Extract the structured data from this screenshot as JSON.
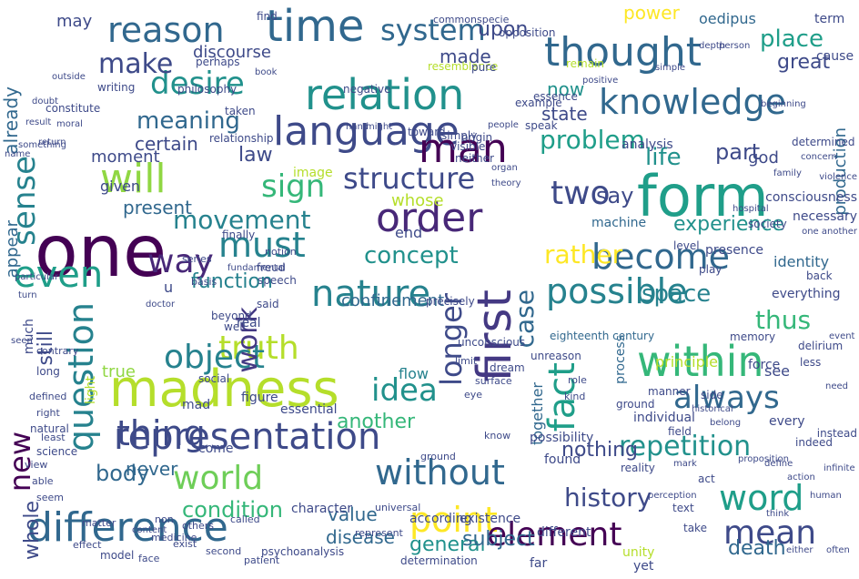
{
  "words": [
    {
      "text": "one",
      "color": "#440154"
    },
    {
      "text": "form",
      "color": "#1f9e89"
    },
    {
      "text": "madness",
      "color": "#b5de2b"
    },
    {
      "text": "language",
      "color": "#3e4a89"
    },
    {
      "text": "difference",
      "color": "#31688e"
    },
    {
      "text": "representation",
      "color": "#3e4a89"
    },
    {
      "text": "thought",
      "color": "#31688e"
    },
    {
      "text": "relation",
      "color": "#21918c"
    },
    {
      "text": "time",
      "color": "#31688e"
    },
    {
      "text": "nature",
      "color": "#26828e"
    },
    {
      "text": "order",
      "color": "#482878"
    },
    {
      "text": "reason",
      "color": "#31688e"
    },
    {
      "text": "knowledge",
      "color": "#31688e"
    },
    {
      "text": "first",
      "color": "#443983"
    },
    {
      "text": "within",
      "color": "#35b779"
    },
    {
      "text": "will",
      "color": "#90d743"
    },
    {
      "text": "question",
      "color": "#26828e"
    },
    {
      "text": "man",
      "color": "#440154"
    },
    {
      "text": "possible",
      "color": "#26828e"
    },
    {
      "text": "world",
      "color": "#6ece58"
    },
    {
      "text": "thing",
      "color": "#3e4a89"
    },
    {
      "text": "without",
      "color": "#31688e"
    },
    {
      "text": "word",
      "color": "#1f9e89"
    },
    {
      "text": "become",
      "color": "#31688e"
    },
    {
      "text": "must",
      "color": "#26828e"
    },
    {
      "text": "fact",
      "color": "#1f9e89"
    },
    {
      "text": "even",
      "color": "#1f9e89"
    },
    {
      "text": "sense",
      "color": "#26828e"
    },
    {
      "text": "desire",
      "color": "#21918c"
    },
    {
      "text": "longer",
      "color": "#3e4a89"
    },
    {
      "text": "point",
      "color": "#fde725"
    },
    {
      "text": "element",
      "color": "#440154"
    },
    {
      "text": "mean",
      "color": "#3e4a89"
    },
    {
      "text": "truth",
      "color": "#b5de2b"
    },
    {
      "text": "object",
      "color": "#26828e"
    },
    {
      "text": "two",
      "color": "#3e4a89"
    },
    {
      "text": "always",
      "color": "#31688e"
    },
    {
      "text": "idea",
      "color": "#21918c"
    },
    {
      "text": "way",
      "color": "#482878"
    },
    {
      "text": "sign",
      "color": "#35b779"
    },
    {
      "text": "new",
      "color": "#440154"
    },
    {
      "text": "structure",
      "color": "#3e4a89"
    },
    {
      "text": "system",
      "color": "#31688e"
    },
    {
      "text": "make",
      "color": "#3e4a89"
    },
    {
      "text": "history",
      "color": "#3e4a89"
    },
    {
      "text": "repetition",
      "color": "#21918c"
    },
    {
      "text": "rather",
      "color": "#fde725"
    },
    {
      "text": "movement",
      "color": "#26828e"
    },
    {
      "text": "problem",
      "color": "#1f9e89"
    },
    {
      "text": "meaning",
      "color": "#31688e"
    },
    {
      "text": "life",
      "color": "#21918c"
    },
    {
      "text": "place",
      "color": "#1f9e89"
    },
    {
      "text": "work",
      "color": "#443983"
    },
    {
      "text": "case",
      "color": "#31688e"
    },
    {
      "text": "say",
      "color": "#3e4a89"
    },
    {
      "text": "thus",
      "color": "#35b779"
    },
    {
      "text": "concept",
      "color": "#21918c"
    },
    {
      "text": "condition",
      "color": "#35b779"
    },
    {
      "text": "death",
      "color": "#31688e"
    },
    {
      "text": "experience",
      "color": "#21918c"
    },
    {
      "text": "power",
      "color": "#fde725"
    },
    {
      "text": "part",
      "color": "#3e4a89"
    },
    {
      "text": "space",
      "color": "#26828e"
    },
    {
      "text": "body",
      "color": "#31688e"
    },
    {
      "text": "general",
      "color": "#21918c"
    },
    {
      "text": "function",
      "color": "#26828e"
    },
    {
      "text": "another",
      "color": "#35b779"
    },
    {
      "text": "nothing",
      "color": "#3e4a89"
    },
    {
      "text": "upon",
      "color": "#3e4a89"
    },
    {
      "text": "certain",
      "color": "#3e4a89"
    },
    {
      "text": "made",
      "color": "#3e4a89"
    },
    {
      "text": "may",
      "color": "#3e4a89"
    },
    {
      "text": "now",
      "color": "#21918c"
    },
    {
      "text": "whole",
      "color": "#3e4a89"
    },
    {
      "text": "still",
      "color": "#3e4a89"
    },
    {
      "text": "law",
      "color": "#3e4a89"
    },
    {
      "text": "subject",
      "color": "#31688e"
    },
    {
      "text": "never",
      "color": "#31688e"
    },
    {
      "text": "value",
      "color": "#31688e"
    },
    {
      "text": "disease",
      "color": "#31688e"
    },
    {
      "text": "present",
      "color": "#31688e"
    },
    {
      "text": "true",
      "color": "#90d743"
    },
    {
      "text": "state",
      "color": "#3e4a89"
    },
    {
      "text": "great",
      "color": "#3e4a89"
    },
    {
      "text": "appear",
      "color": "#31688e"
    },
    {
      "text": "already",
      "color": "#31688e"
    },
    {
      "text": "moment",
      "color": "#3e4a89"
    },
    {
      "text": "discourse",
      "color": "#3e4a89"
    },
    {
      "text": "given",
      "color": "#3e4a89"
    },
    {
      "text": "production",
      "color": "#31688e"
    },
    {
      "text": "god",
      "color": "#3e4a89"
    },
    {
      "text": "whose",
      "color": "#b5de2b"
    },
    {
      "text": "together",
      "color": "#31688e"
    },
    {
      "text": "flow",
      "color": "#26828e"
    },
    {
      "text": "end",
      "color": "#3e4a89"
    },
    {
      "text": "oedipus",
      "color": "#31688e"
    },
    {
      "text": "analysis",
      "color": "#3e4a89"
    },
    {
      "text": "identity",
      "color": "#31688e"
    },
    {
      "text": "yet",
      "color": "#3e4a89"
    },
    {
      "text": "essential",
      "color": "#3e4a89"
    },
    {
      "text": "figure",
      "color": "#3e4a89"
    },
    {
      "text": "come",
      "color": "#3e4a89"
    },
    {
      "text": "confinement",
      "color": "#31688e"
    },
    {
      "text": "u",
      "color": "#3e4a89"
    },
    {
      "text": "process",
      "color": "#31688e"
    },
    {
      "text": "principle",
      "color": "#b5de2b"
    },
    {
      "text": "consciousness",
      "color": "#3e4a89"
    },
    {
      "text": "force",
      "color": "#3e4a89"
    },
    {
      "text": "see",
      "color": "#3e4a89"
    },
    {
      "text": "found",
      "color": "#3e4a89"
    },
    {
      "text": "possibility",
      "color": "#3e4a89"
    },
    {
      "text": "character",
      "color": "#3e4a89"
    },
    {
      "text": "different",
      "color": "#3e4a89"
    },
    {
      "text": "much",
      "color": "#3e4a89"
    },
    {
      "text": "precisely",
      "color": "#3e4a89"
    },
    {
      "text": "eighteenth century",
      "color": "#31688e"
    },
    {
      "text": "according",
      "color": "#3e4a89"
    },
    {
      "text": "existence",
      "color": "#3e4a89"
    },
    {
      "text": "far",
      "color": "#3e4a89"
    },
    {
      "text": "unity",
      "color": "#b5de2b"
    },
    {
      "text": "necessary",
      "color": "#3e4a89"
    },
    {
      "text": "individual",
      "color": "#3e4a89"
    },
    {
      "text": "every",
      "color": "#3e4a89"
    },
    {
      "text": "everything",
      "color": "#3e4a89"
    },
    {
      "text": "presence",
      "color": "#3e4a89"
    },
    {
      "text": "machine",
      "color": "#31688e"
    },
    {
      "text": "determined",
      "color": "#3e4a89"
    },
    {
      "text": "term",
      "color": "#3e4a89"
    },
    {
      "text": "cause",
      "color": "#3e4a89"
    },
    {
      "text": "light",
      "color": "#b5de2b"
    },
    {
      "text": "find",
      "color": "#3e4a89"
    },
    {
      "text": "image",
      "color": "#b5de2b"
    },
    {
      "text": "finally",
      "color": "#3e4a89"
    },
    {
      "text": "social",
      "color": "#3e4a89"
    },
    {
      "text": "mad",
      "color": "#3e4a89"
    },
    {
      "text": "science",
      "color": "#3e4a89"
    },
    {
      "text": "natural",
      "color": "#3e4a89"
    },
    {
      "text": "long",
      "color": "#3e4a89"
    },
    {
      "text": "real",
      "color": "#3e4a89"
    },
    {
      "text": "unconscious",
      "color": "#3e4a89"
    },
    {
      "text": "said",
      "color": "#3e4a89"
    },
    {
      "text": "beyond",
      "color": "#3e4a89"
    },
    {
      "text": "well",
      "color": "#3e4a89"
    },
    {
      "text": "neither",
      "color": "#3e4a89"
    },
    {
      "text": "simply",
      "color": "#3e4a89"
    },
    {
      "text": "resemblance",
      "color": "#b5de2b"
    },
    {
      "text": "example",
      "color": "#3e4a89"
    },
    {
      "text": "essence",
      "color": "#3e4a89"
    },
    {
      "text": "remain",
      "color": "#b5de2b"
    },
    {
      "text": "perhaps",
      "color": "#3e4a89"
    },
    {
      "text": "philosophy",
      "color": "#3e4a89"
    },
    {
      "text": "negative",
      "color": "#3e4a89"
    },
    {
      "text": "pure",
      "color": "#3e4a89"
    },
    {
      "text": "specie",
      "color": "#3e4a89"
    },
    {
      "text": "common",
      "color": "#3e4a89"
    },
    {
      "text": "opposition",
      "color": "#3e4a89"
    },
    {
      "text": "constitute",
      "color": "#3e4a89"
    },
    {
      "text": "writing",
      "color": "#3e4a89"
    },
    {
      "text": "taken",
      "color": "#3e4a89"
    },
    {
      "text": "relationship",
      "color": "#3e4a89"
    },
    {
      "text": "origin",
      "color": "#3e4a89"
    },
    {
      "text": "speak",
      "color": "#3e4a89"
    },
    {
      "text": "toward",
      "color": "#3e4a89"
    },
    {
      "text": "visible",
      "color": "#3e4a89"
    },
    {
      "text": "speech",
      "color": "#3e4a89"
    },
    {
      "text": "freud",
      "color": "#3e4a89"
    },
    {
      "text": "notion",
      "color": "#3e4a89"
    },
    {
      "text": "series",
      "color": "#3e4a89"
    },
    {
      "text": "basis",
      "color": "#3e4a89"
    },
    {
      "text": "society",
      "color": "#3e4a89"
    },
    {
      "text": "level",
      "color": "#3e4a89"
    },
    {
      "text": "play",
      "color": "#3e4a89"
    },
    {
      "text": "back",
      "color": "#3e4a89"
    },
    {
      "text": "less",
      "color": "#3e4a89"
    },
    {
      "text": "delirium",
      "color": "#3e4a89"
    },
    {
      "text": "memory",
      "color": "#3e4a89"
    },
    {
      "text": "indeed",
      "color": "#3e4a89"
    },
    {
      "text": "instead",
      "color": "#3e4a89"
    },
    {
      "text": "side",
      "color": "#3e4a89"
    },
    {
      "text": "field",
      "color": "#3e4a89"
    },
    {
      "text": "manner",
      "color": "#3e4a89"
    },
    {
      "text": "ground",
      "color": "#3e4a89"
    },
    {
      "text": "reality",
      "color": "#3e4a89"
    },
    {
      "text": "take",
      "color": "#3e4a89"
    },
    {
      "text": "act",
      "color": "#3e4a89"
    },
    {
      "text": "text",
      "color": "#3e4a89"
    },
    {
      "text": "role",
      "color": "#3e4a89"
    },
    {
      "text": "unreason",
      "color": "#3e4a89"
    },
    {
      "text": "kind",
      "color": "#3e4a89"
    },
    {
      "text": "know",
      "color": "#3e4a89"
    },
    {
      "text": "limit",
      "color": "#3e4a89"
    },
    {
      "text": "eye",
      "color": "#3e4a89"
    },
    {
      "text": "surface",
      "color": "#3e4a89"
    },
    {
      "text": "dream",
      "color": "#3e4a89"
    },
    {
      "text": "ground",
      "color": "#3e4a89"
    },
    {
      "text": "universal",
      "color": "#3e4a89"
    },
    {
      "text": "represent",
      "color": "#3e4a89"
    },
    {
      "text": "psychoanalysis",
      "color": "#3e4a89"
    },
    {
      "text": "patient",
      "color": "#3e4a89"
    },
    {
      "text": "called",
      "color": "#3e4a89"
    },
    {
      "text": "second",
      "color": "#3e4a89"
    },
    {
      "text": "exist",
      "color": "#3e4a89"
    },
    {
      "text": "others",
      "color": "#3e4a89"
    },
    {
      "text": "face",
      "color": "#3e4a89"
    },
    {
      "text": "model",
      "color": "#3e4a89"
    },
    {
      "text": "effect",
      "color": "#3e4a89"
    },
    {
      "text": "matter",
      "color": "#3e4a89"
    },
    {
      "text": "determination",
      "color": "#3e4a89"
    },
    {
      "text": "defined",
      "color": "#3e4a89"
    },
    {
      "text": "least",
      "color": "#3e4a89"
    },
    {
      "text": "right",
      "color": "#3e4a89"
    },
    {
      "text": "view",
      "color": "#3e4a89"
    },
    {
      "text": "able",
      "color": "#3e4a89"
    },
    {
      "text": "seem",
      "color": "#3e4a89"
    },
    {
      "text": "non",
      "color": "#3e4a89"
    },
    {
      "text": "medicine",
      "color": "#3e4a89"
    },
    {
      "text": "content",
      "color": "#3e4a89"
    },
    {
      "text": "contrary",
      "color": "#3e4a89"
    },
    {
      "text": "particular",
      "color": "#3e4a89"
    },
    {
      "text": "turn",
      "color": "#3e4a89"
    },
    {
      "text": "seen",
      "color": "#3e4a89"
    },
    {
      "text": "name",
      "color": "#3e4a89"
    },
    {
      "text": "something",
      "color": "#3e4a89"
    },
    {
      "text": "return",
      "color": "#3e4a89"
    },
    {
      "text": "result",
      "color": "#3e4a89"
    },
    {
      "text": "moral",
      "color": "#3e4a89"
    },
    {
      "text": "doubt",
      "color": "#3e4a89"
    },
    {
      "text": "outside",
      "color": "#3e4a89"
    },
    {
      "text": "book",
      "color": "#3e4a89"
    },
    {
      "text": "hand",
      "color": "#3e4a89"
    },
    {
      "text": "might",
      "color": "#3e4a89"
    },
    {
      "text": "people",
      "color": "#3e4a89"
    },
    {
      "text": "organ",
      "color": "#3e4a89"
    },
    {
      "text": "theory",
      "color": "#3e4a89"
    },
    {
      "text": "fundamental",
      "color": "#3e4a89"
    },
    {
      "text": "doctor",
      "color": "#3e4a89"
    },
    {
      "text": "positive",
      "color": "#3e4a89"
    },
    {
      "text": "simple",
      "color": "#3e4a89"
    },
    {
      "text": "depth",
      "color": "#3e4a89"
    },
    {
      "text": "person",
      "color": "#3e4a89"
    },
    {
      "text": "beginning",
      "color": "#3e4a89"
    },
    {
      "text": "hospital",
      "color": "#3e4a89"
    },
    {
      "text": "family",
      "color": "#3e4a89"
    },
    {
      "text": "concern",
      "color": "#3e4a89"
    },
    {
      "text": "violence",
      "color": "#3e4a89"
    },
    {
      "text": "one another",
      "color": "#3e4a89"
    },
    {
      "text": "event",
      "color": "#3e4a89"
    },
    {
      "text": "need",
      "color": "#3e4a89"
    },
    {
      "text": "infinite",
      "color": "#3e4a89"
    },
    {
      "text": "often",
      "color": "#3e4a89"
    },
    {
      "text": "either",
      "color": "#3e4a89"
    },
    {
      "text": "think",
      "color": "#3e4a89"
    },
    {
      "text": "human",
      "color": "#3e4a89"
    },
    {
      "text": "action",
      "color": "#3e4a89"
    },
    {
      "text": "define",
      "color": "#3e4a89"
    },
    {
      "text": "proposition",
      "color": "#3e4a89"
    },
    {
      "text": "belong",
      "color": "#3e4a89"
    },
    {
      "text": "historical",
      "color": "#3e4a89"
    },
    {
      "text": "mark",
      "color": "#3e4a89"
    },
    {
      "text": "perception",
      "color": "#3e4a89"
    }
  ]
}
